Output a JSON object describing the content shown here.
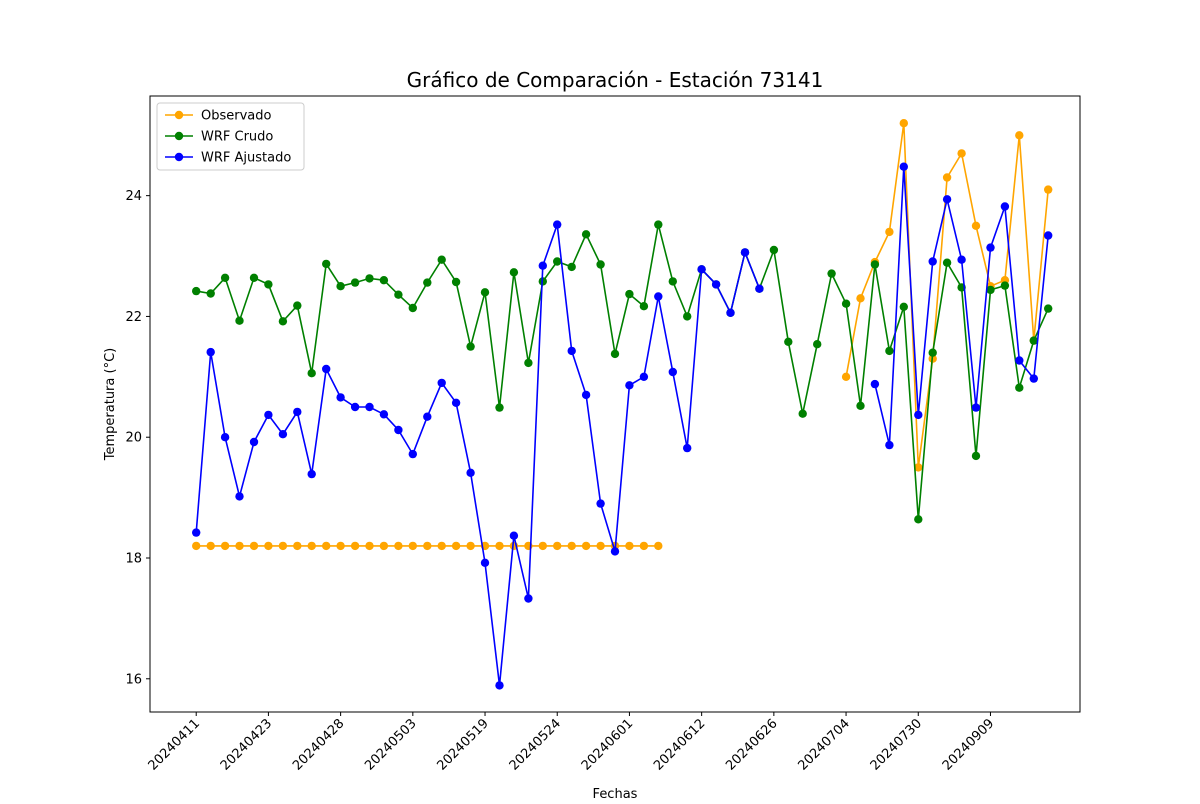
{
  "chart_data": {
    "type": "line",
    "title": "Gráfico de Comparación - Estación 73141",
    "xlabel": "Fechas",
    "ylabel": "Temperatura (°C)",
    "ylim": [
      15.45,
      25.65
    ],
    "yticks": [
      16,
      18,
      20,
      22,
      24
    ],
    "xlim": [
      -3.2,
      61.2
    ],
    "xtick_positions": [
      0,
      5,
      10,
      15,
      20,
      25,
      30,
      35,
      40,
      45,
      50,
      55
    ],
    "xtick_labels": [
      "20240411",
      "20240423",
      "20240428",
      "20240503",
      "20240519",
      "20240524",
      "20240601",
      "20240612",
      "20240626",
      "20240704",
      "20240730",
      "20240909"
    ],
    "grid": false,
    "legend_position": "top-left",
    "series": [
      {
        "name": "Observado",
        "color": "#ffa500",
        "points": [
          [
            0,
            18.2
          ],
          [
            1,
            18.2
          ],
          [
            2,
            18.2
          ],
          [
            3,
            18.2
          ],
          [
            4,
            18.2
          ],
          [
            5,
            18.2
          ],
          [
            6,
            18.2
          ],
          [
            7,
            18.2
          ],
          [
            8,
            18.2
          ],
          [
            9,
            18.2
          ],
          [
            10,
            18.2
          ],
          [
            11,
            18.2
          ],
          [
            12,
            18.2
          ],
          [
            13,
            18.2
          ],
          [
            14,
            18.2
          ],
          [
            15,
            18.2
          ],
          [
            16,
            18.2
          ],
          [
            17,
            18.2
          ],
          [
            18,
            18.2
          ],
          [
            19,
            18.2
          ],
          [
            20,
            18.2
          ],
          [
            21,
            18.2
          ],
          [
            22,
            18.2
          ],
          [
            23,
            18.2
          ],
          [
            24,
            18.2
          ],
          [
            25,
            18.2
          ],
          [
            26,
            18.2
          ],
          [
            27,
            18.2
          ],
          [
            28,
            18.2
          ],
          [
            29,
            18.2
          ],
          [
            30,
            18.2
          ],
          [
            31,
            18.2
          ],
          [
            32,
            18.2
          ],
          [
            45,
            21.0
          ],
          [
            46,
            22.3
          ],
          [
            47,
            22.9
          ],
          [
            48,
            23.4
          ],
          [
            49,
            25.2
          ],
          [
            50,
            19.5
          ],
          [
            51,
            21.3
          ],
          [
            52,
            24.3
          ],
          [
            53,
            24.7
          ],
          [
            54,
            23.5
          ],
          [
            55,
            22.5
          ],
          [
            56,
            22.6
          ],
          [
            57,
            25.0
          ],
          [
            58,
            21.6
          ],
          [
            59,
            24.1
          ]
        ]
      },
      {
        "name": "WRF Crudo",
        "color": "#008000",
        "points": [
          [
            0,
            22.42
          ],
          [
            1,
            22.38
          ],
          [
            2,
            22.64
          ],
          [
            3,
            21.93
          ],
          [
            4,
            22.64
          ],
          [
            5,
            22.53
          ],
          [
            6,
            21.92
          ],
          [
            7,
            22.18
          ],
          [
            8,
            21.06
          ],
          [
            9,
            22.87
          ],
          [
            10,
            22.5
          ],
          [
            11,
            22.56
          ],
          [
            12,
            22.63
          ],
          [
            13,
            22.6
          ],
          [
            14,
            22.36
          ],
          [
            15,
            22.14
          ],
          [
            16,
            22.56
          ],
          [
            17,
            22.94
          ],
          [
            18,
            22.57
          ],
          [
            19,
            21.5
          ],
          [
            20,
            22.4
          ],
          [
            21,
            20.49
          ],
          [
            22,
            22.73
          ],
          [
            23,
            21.23
          ],
          [
            24,
            22.58
          ],
          [
            25,
            22.91
          ],
          [
            26,
            22.82
          ],
          [
            27,
            23.36
          ],
          [
            28,
            22.86
          ],
          [
            29,
            21.38
          ],
          [
            30,
            22.37
          ],
          [
            31,
            22.17
          ],
          [
            32,
            23.52
          ],
          [
            33,
            22.58
          ],
          [
            34,
            22.0
          ],
          [
            35,
            22.78
          ],
          [
            36,
            22.53
          ],
          [
            37,
            22.06
          ],
          [
            38,
            23.06
          ],
          [
            39,
            22.46
          ],
          [
            40,
            23.1
          ],
          [
            41,
            21.58
          ],
          [
            42,
            20.39
          ],
          [
            43,
            21.54
          ],
          [
            44,
            22.71
          ],
          [
            45,
            22.21
          ],
          [
            46,
            20.52
          ],
          [
            47,
            22.86
          ],
          [
            48,
            21.43
          ],
          [
            49,
            22.16
          ],
          [
            50,
            18.64
          ],
          [
            51,
            21.4
          ],
          [
            52,
            22.89
          ],
          [
            53,
            22.48
          ],
          [
            54,
            19.69
          ],
          [
            55,
            22.44
          ],
          [
            56,
            22.51
          ],
          [
            57,
            20.82
          ],
          [
            58,
            21.6
          ],
          [
            59,
            22.13
          ]
        ]
      },
      {
        "name": "WRF Ajustado",
        "color": "#0000ff",
        "points": [
          [
            0,
            18.42
          ],
          [
            1,
            21.41
          ],
          [
            2,
            20.0
          ],
          [
            3,
            19.02
          ],
          [
            4,
            19.92
          ],
          [
            5,
            20.37
          ],
          [
            6,
            20.05
          ],
          [
            7,
            20.42
          ],
          [
            8,
            19.39
          ],
          [
            9,
            21.13
          ],
          [
            10,
            20.66
          ],
          [
            11,
            20.5
          ],
          [
            12,
            20.5
          ],
          [
            13,
            20.38
          ],
          [
            14,
            20.12
          ],
          [
            15,
            19.72
          ],
          [
            16,
            20.34
          ],
          [
            17,
            20.9
          ],
          [
            18,
            20.57
          ],
          [
            19,
            19.41
          ],
          [
            20,
            17.92
          ],
          [
            21,
            15.89
          ],
          [
            22,
            18.37
          ],
          [
            23,
            17.33
          ],
          [
            24,
            22.84
          ],
          [
            25,
            23.52
          ],
          [
            26,
            21.43
          ],
          [
            27,
            20.7
          ],
          [
            28,
            18.9
          ],
          [
            29,
            18.11
          ],
          [
            30,
            20.86
          ],
          [
            31,
            21.0
          ],
          [
            32,
            22.33
          ],
          [
            33,
            21.08
          ],
          [
            34,
            19.82
          ],
          [
            35,
            22.78
          ],
          [
            36,
            22.53
          ],
          [
            37,
            22.06
          ],
          [
            38,
            23.06
          ],
          [
            39,
            22.46
          ],
          [
            47,
            20.88
          ],
          [
            48,
            19.87
          ],
          [
            49,
            24.48
          ],
          [
            50,
            20.37
          ],
          [
            51,
            22.91
          ],
          [
            52,
            23.94
          ],
          [
            53,
            22.94
          ],
          [
            54,
            20.49
          ],
          [
            55,
            23.14
          ],
          [
            56,
            23.82
          ],
          [
            57,
            21.27
          ],
          [
            58,
            20.97
          ],
          [
            59,
            23.34
          ]
        ]
      }
    ]
  }
}
